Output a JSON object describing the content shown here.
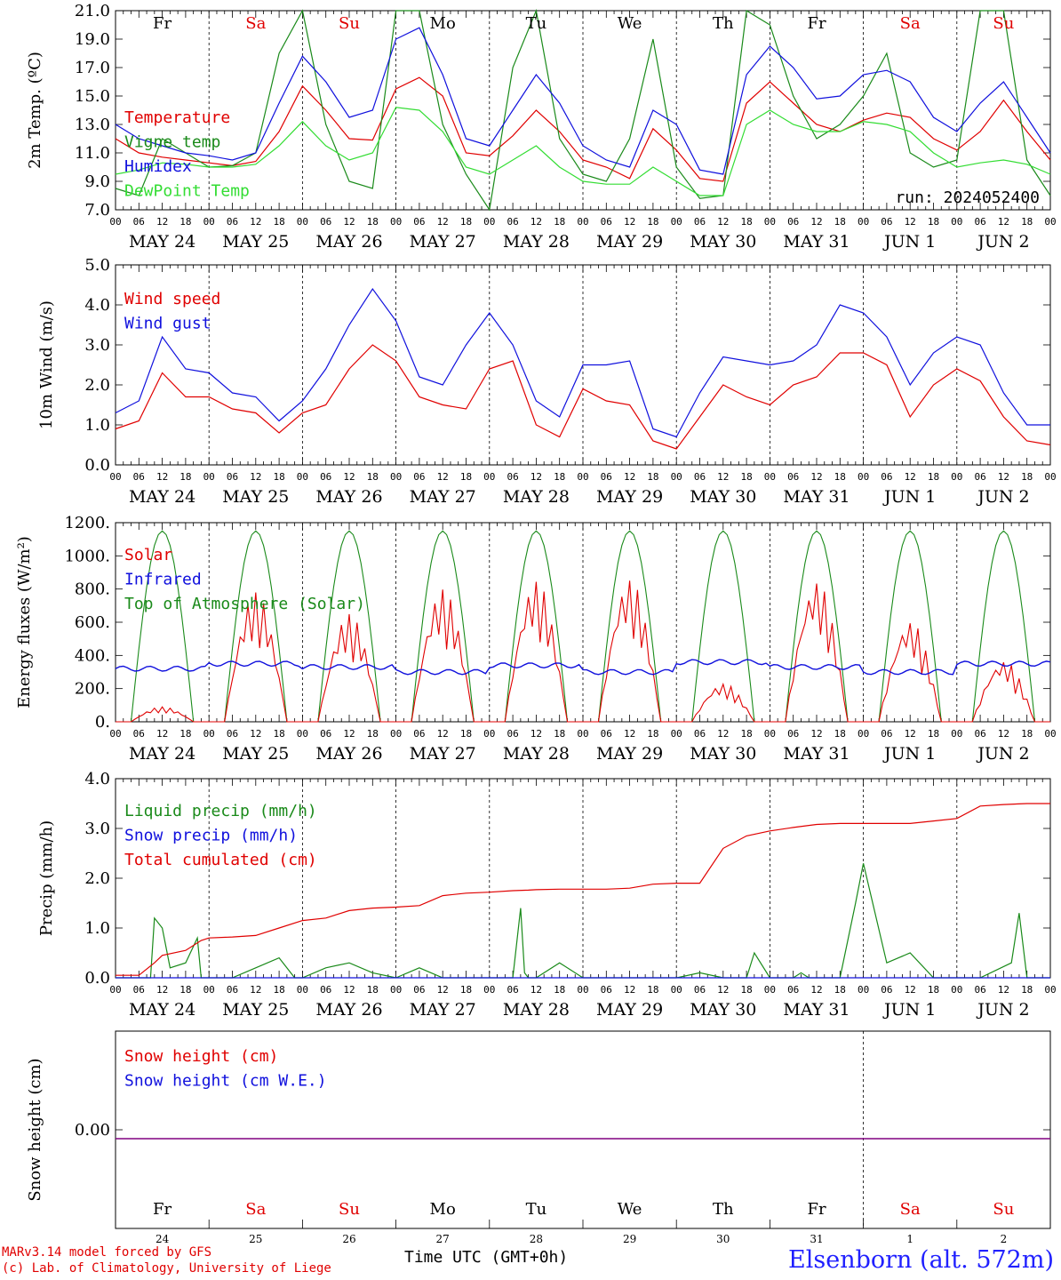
{
  "colors": {
    "red": "#e00000",
    "green": "#1a8a1a",
    "blue": "#1010dd",
    "lightgreen": "#33dd33",
    "purple": "#800080",
    "black": "#000000"
  },
  "days": [
    {
      "abbr": "Fr",
      "date_label": "MAY 24",
      "num": "24",
      "weekend": false
    },
    {
      "abbr": "Sa",
      "date_label": "MAY 25",
      "num": "25",
      "weekend": true
    },
    {
      "abbr": "Su",
      "date_label": "MAY 26",
      "num": "26",
      "weekend": true
    },
    {
      "abbr": "Mo",
      "date_label": "MAY 27",
      "num": "27",
      "weekend": false
    },
    {
      "abbr": "Tu",
      "date_label": "MAY 28",
      "num": "28",
      "weekend": false
    },
    {
      "abbr": "We",
      "date_label": "MAY 29",
      "num": "29",
      "weekend": false
    },
    {
      "abbr": "Th",
      "date_label": "MAY 30",
      "num": "30",
      "weekend": false
    },
    {
      "abbr": "Fr",
      "date_label": "MAY 31",
      "num": "31",
      "weekend": false
    },
    {
      "abbr": "Sa",
      "date_label": "JUN  1",
      "num": "1",
      "weekend": true
    },
    {
      "abbr": "Su",
      "date_label": "JUN  2",
      "num": "2",
      "weekend": true
    }
  ],
  "hour_ticks": [
    "00",
    "06",
    "12",
    "18"
  ],
  "run_label": "run: 2024052400",
  "footer": {
    "model_line1": "MARv3.14 model forced by GFS",
    "model_line2": "(c) Lab. of Climatology, University of Liege",
    "time_label": "Time UTC (GMT+0h)",
    "station": "Elsenborn (alt. 572m)"
  },
  "chart_data": [
    {
      "type": "line",
      "ylabel": "2m Temp. (ºC)",
      "ylim": [
        7.0,
        21.0
      ],
      "yticks": [
        "7.0",
        "9.0",
        "11.0",
        "13.0",
        "15.0",
        "17.0",
        "19.0",
        "21.0"
      ],
      "x_unit": "hours since MAY 24 00 UTC",
      "xlim": [
        0,
        240
      ],
      "series": [
        {
          "name": "Temperature",
          "color": "#e00000",
          "x": [
            0,
            6,
            12,
            18,
            24,
            30,
            36,
            42,
            48,
            54,
            60,
            66,
            72,
            78,
            84,
            90,
            96,
            102,
            108,
            114,
            120,
            126,
            132,
            138,
            144,
            150,
            156,
            162,
            168,
            174,
            180,
            186,
            192,
            198,
            204,
            210,
            216,
            222,
            228,
            234,
            240
          ],
          "y": [
            12.0,
            11.0,
            10.7,
            10.5,
            10.3,
            10.1,
            10.4,
            12.5,
            15.7,
            14.0,
            12.0,
            11.9,
            15.5,
            16.3,
            15.0,
            11.0,
            10.8,
            12.2,
            14.0,
            12.5,
            10.5,
            10.0,
            9.2,
            12.7,
            11.2,
            9.2,
            9.0,
            14.5,
            16.0,
            14.5,
            13.0,
            12.5,
            13.3,
            13.8,
            13.5,
            12.0,
            11.2,
            12.5,
            14.7,
            12.5,
            10.5
          ]
        },
        {
          "name": "Vigne temp",
          "color": "#1a8a1a",
          "x": [
            0,
            6,
            12,
            18,
            24,
            30,
            36,
            42,
            48,
            54,
            60,
            66,
            72,
            78,
            84,
            90,
            96,
            102,
            108,
            114,
            120,
            126,
            132,
            138,
            144,
            150,
            156,
            162,
            168,
            174,
            180,
            186,
            192,
            198,
            204,
            210,
            216,
            222,
            228,
            234,
            240
          ],
          "y": [
            8.5,
            8.0,
            12.0,
            11.0,
            10.0,
            10.1,
            11.0,
            18.0,
            23.0,
            13.0,
            9.0,
            8.5,
            23.0,
            22.0,
            13.0,
            9.5,
            7.0,
            17.0,
            23.0,
            12.0,
            9.5,
            9.0,
            12.0,
            19.0,
            10.0,
            7.8,
            8.0,
            23.0,
            20.0,
            15.0,
            12.0,
            13.0,
            15.0,
            18.0,
            11.0,
            10.0,
            10.5,
            22.0,
            23.0,
            10.5,
            8.0
          ]
        },
        {
          "name": "Humidex",
          "color": "#1010dd",
          "x": [
            0,
            6,
            12,
            18,
            24,
            30,
            36,
            42,
            48,
            54,
            60,
            66,
            72,
            78,
            84,
            90,
            96,
            102,
            108,
            114,
            120,
            126,
            132,
            138,
            144,
            150,
            156,
            162,
            168,
            174,
            180,
            186,
            192,
            198,
            204,
            210,
            216,
            222,
            228,
            234,
            240
          ],
          "y": [
            13.0,
            12.0,
            11.5,
            11.0,
            10.8,
            10.5,
            11.0,
            14.5,
            17.8,
            16.0,
            13.5,
            14.0,
            19.0,
            19.8,
            16.5,
            12.0,
            11.5,
            14.0,
            16.5,
            14.5,
            11.5,
            10.5,
            10.0,
            14.0,
            13.0,
            9.8,
            9.5,
            16.5,
            18.5,
            17.0,
            14.8,
            15.0,
            16.5,
            16.8,
            16.0,
            13.5,
            12.5,
            14.5,
            16.0,
            13.5,
            11.0
          ]
        },
        {
          "name": "DewPoint Temp",
          "color": "#33dd33",
          "x": [
            0,
            6,
            12,
            18,
            24,
            30,
            36,
            42,
            48,
            54,
            60,
            66,
            72,
            78,
            84,
            90,
            96,
            102,
            108,
            114,
            120,
            126,
            132,
            138,
            144,
            150,
            156,
            162,
            168,
            174,
            180,
            186,
            192,
            198,
            204,
            210,
            216,
            222,
            228,
            234,
            240
          ],
          "y": [
            9.5,
            9.8,
            10.3,
            10.2,
            10.0,
            10.0,
            10.2,
            11.5,
            13.2,
            11.5,
            10.5,
            11.0,
            14.2,
            14.0,
            12.5,
            10.0,
            9.5,
            10.5,
            11.5,
            10.0,
            9.0,
            8.8,
            8.8,
            10.0,
            9.0,
            8.0,
            8.0,
            13.0,
            14.0,
            13.0,
            12.5,
            12.5,
            13.2,
            13.0,
            12.5,
            11.0,
            10.0,
            10.3,
            10.5,
            10.2,
            9.5
          ]
        }
      ]
    },
    {
      "type": "line",
      "ylabel": "10m Wind (m/s)",
      "ylim": [
        0.0,
        5.0
      ],
      "yticks": [
        "0.0",
        "1.0",
        "2.0",
        "3.0",
        "4.0",
        "5.0"
      ],
      "x_unit": "hours since MAY 24 00 UTC",
      "xlim": [
        0,
        240
      ],
      "series": [
        {
          "name": "Wind speed",
          "color": "#e00000",
          "x": [
            0,
            6,
            12,
            18,
            24,
            30,
            36,
            42,
            48,
            54,
            60,
            66,
            72,
            78,
            84,
            90,
            96,
            102,
            108,
            114,
            120,
            126,
            132,
            138,
            144,
            150,
            156,
            162,
            168,
            174,
            180,
            186,
            192,
            198,
            204,
            210,
            216,
            222,
            228,
            234,
            240
          ],
          "y": [
            0.9,
            1.1,
            2.3,
            1.7,
            1.7,
            1.4,
            1.3,
            0.8,
            1.3,
            1.5,
            2.4,
            3.0,
            2.6,
            1.7,
            1.5,
            1.4,
            2.4,
            2.6,
            1.0,
            0.7,
            1.9,
            1.6,
            1.5,
            0.6,
            0.4,
            1.2,
            2.0,
            1.7,
            1.5,
            2.0,
            2.2,
            2.8,
            2.8,
            2.5,
            1.2,
            2.0,
            2.4,
            2.1,
            1.2,
            0.6,
            0.5
          ]
        },
        {
          "name": "Wind gust",
          "color": "#1010dd",
          "x": [
            0,
            6,
            12,
            18,
            24,
            30,
            36,
            42,
            48,
            54,
            60,
            66,
            72,
            78,
            84,
            90,
            96,
            102,
            108,
            114,
            120,
            126,
            132,
            138,
            144,
            150,
            156,
            162,
            168,
            174,
            180,
            186,
            192,
            198,
            204,
            210,
            216,
            222,
            228,
            234,
            240
          ],
          "y": [
            1.3,
            1.6,
            3.2,
            2.4,
            2.3,
            1.8,
            1.7,
            1.1,
            1.6,
            2.4,
            3.5,
            4.4,
            3.6,
            2.2,
            2.0,
            3.0,
            3.8,
            3.0,
            1.6,
            1.2,
            2.5,
            2.5,
            2.6,
            0.9,
            0.7,
            1.8,
            2.7,
            2.6,
            2.5,
            2.6,
            3.0,
            4.0,
            3.8,
            3.2,
            2.0,
            2.8,
            3.2,
            3.0,
            1.8,
            1.0,
            1.0
          ]
        }
      ]
    },
    {
      "type": "line",
      "ylabel": "Energy fluxes (W/m²)",
      "ylim": [
        0,
        1200
      ],
      "yticks": [
        "0.",
        "200.",
        "400.",
        "600.",
        "800.",
        "1000.",
        "1200."
      ],
      "x_unit": "hours since MAY 24 00 UTC",
      "xlim": [
        0,
        240
      ],
      "series": [
        {
          "name": "Solar",
          "color": "#e00000",
          "daily_peaks": [
            90,
            780,
            650,
            800,
            850,
            860,
            230,
            850,
            610,
            370
          ]
        },
        {
          "name": "Infrared",
          "color": "#1010dd",
          "baseline": [
            320,
            350,
            330,
            300,
            340,
            300,
            360,
            330,
            300,
            350
          ]
        },
        {
          "name": "Top of Atmosphere (Solar)",
          "color": "#1a8a1a",
          "daily_peak": 1150
        }
      ]
    },
    {
      "type": "line",
      "ylabel": "Precip (mm/h)",
      "ylim": [
        0.0,
        4.0
      ],
      "yticks": [
        "0.0",
        "1.0",
        "2.0",
        "3.0",
        "4.0"
      ],
      "x_unit": "hours since MAY 24 00 UTC",
      "xlim": [
        0,
        240
      ],
      "series": [
        {
          "name": "Liquid precip (mm/h)",
          "color": "#1a8a1a",
          "x": [
            0,
            9,
            10,
            12,
            14,
            18,
            21,
            22,
            24,
            30,
            36,
            42,
            46,
            48,
            54,
            60,
            66,
            72,
            78,
            84,
            90,
            96,
            102,
            104,
            105,
            106,
            108,
            114,
            120,
            126,
            132,
            138,
            144,
            150,
            156,
            160,
            162,
            164,
            168,
            174,
            176,
            178,
            180,
            186,
            190,
            192,
            198,
            204,
            210,
            216,
            222,
            230,
            232,
            234,
            240
          ],
          "y": [
            0,
            0,
            1.2,
            1.0,
            0.2,
            0.3,
            0.8,
            0,
            0,
            0,
            0.2,
            0.4,
            0,
            0,
            0.2,
            0.3,
            0.1,
            0,
            0.2,
            0,
            0,
            0,
            0,
            1.4,
            0.1,
            0,
            0,
            0.3,
            0,
            0,
            0,
            0,
            0,
            0.1,
            0,
            0,
            0,
            0.5,
            0,
            0,
            0.1,
            0,
            0,
            0,
            1.5,
            2.3,
            0.3,
            0.5,
            0,
            0,
            0,
            0.3,
            1.3,
            0,
            0
          ]
        },
        {
          "name": "Snow precip (mm/h)",
          "color": "#1010dd",
          "x": [
            0,
            240
          ],
          "y": [
            0,
            0
          ]
        },
        {
          "name": "Total cumulated (cm)",
          "color": "#e00000",
          "x": [
            0,
            6,
            10,
            12,
            18,
            22,
            24,
            30,
            36,
            42,
            48,
            54,
            60,
            66,
            72,
            78,
            84,
            90,
            96,
            102,
            106,
            108,
            114,
            120,
            126,
            132,
            138,
            144,
            150,
            156,
            162,
            168,
            174,
            180,
            186,
            190,
            192,
            198,
            204,
            210,
            216,
            222,
            228,
            234,
            240
          ],
          "y": [
            0.05,
            0.05,
            0.3,
            0.45,
            0.55,
            0.75,
            0.8,
            0.82,
            0.85,
            1.0,
            1.15,
            1.2,
            1.35,
            1.4,
            1.42,
            1.45,
            1.65,
            1.7,
            1.72,
            1.75,
            1.76,
            1.77,
            1.78,
            1.78,
            1.78,
            1.8,
            1.88,
            1.9,
            1.9,
            2.6,
            2.85,
            2.95,
            3.02,
            3.08,
            3.1,
            3.1,
            3.1,
            3.1,
            3.1,
            3.15,
            3.2,
            3.45,
            3.48,
            3.5,
            3.5
          ]
        }
      ]
    },
    {
      "type": "line",
      "ylabel": "Snow height (cm)",
      "yticks": [
        "0.00"
      ],
      "x_unit": "hours since MAY 24 00 UTC",
      "xlim": [
        0,
        240
      ],
      "series": [
        {
          "name": "Snow height (cm)",
          "color": "#e00000",
          "x": [
            0,
            240
          ],
          "y": [
            0,
            0
          ]
        },
        {
          "name": "Snow height (cm W.E.)",
          "color": "#1010dd",
          "x": [
            0,
            240
          ],
          "y": [
            0,
            0
          ]
        }
      ]
    }
  ]
}
